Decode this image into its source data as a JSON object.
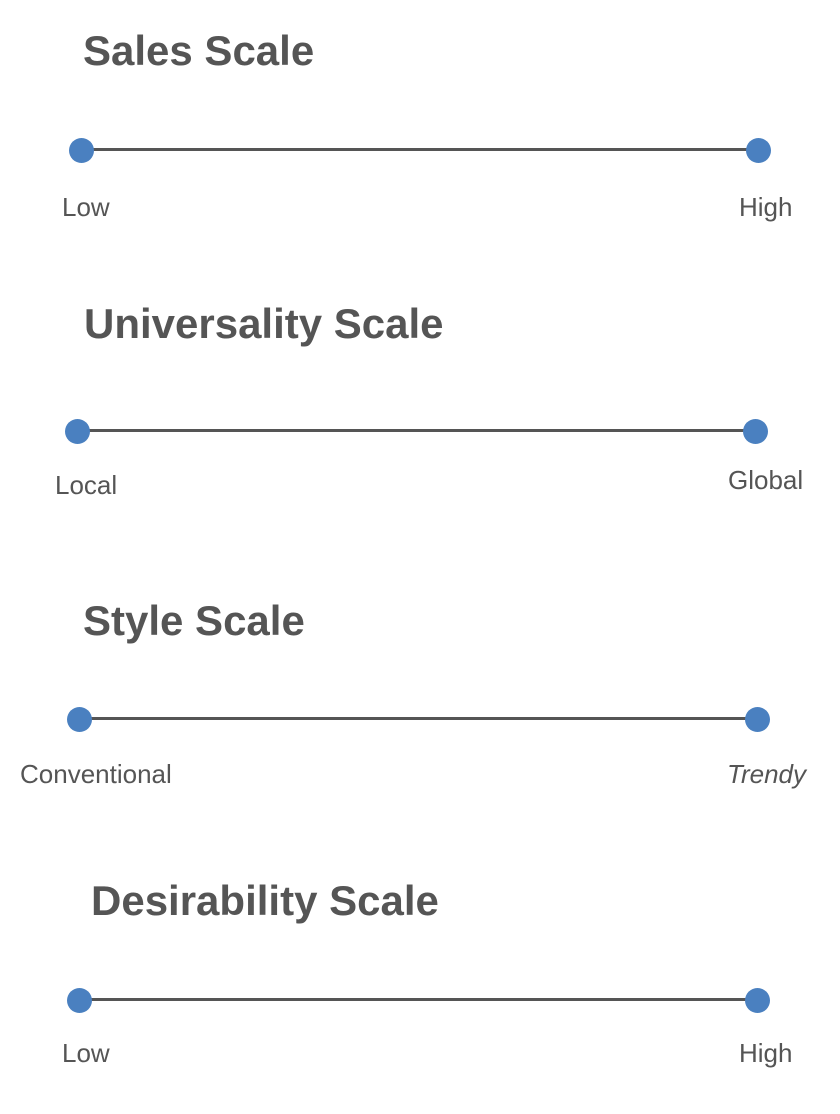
{
  "colors": {
    "dot": "#4a80c0",
    "line": "#555555",
    "text": "#555555"
  },
  "scales": [
    {
      "title": "Sales Scale",
      "low_label": "Low",
      "high_label": "High"
    },
    {
      "title": "Universality Scale",
      "low_label": "Local",
      "high_label": "Global"
    },
    {
      "title": "Style Scale",
      "low_label": "Conventional",
      "high_label": "Trendy"
    },
    {
      "title": "Desirability Scale",
      "low_label": "Low",
      "high_label": "High"
    }
  ]
}
